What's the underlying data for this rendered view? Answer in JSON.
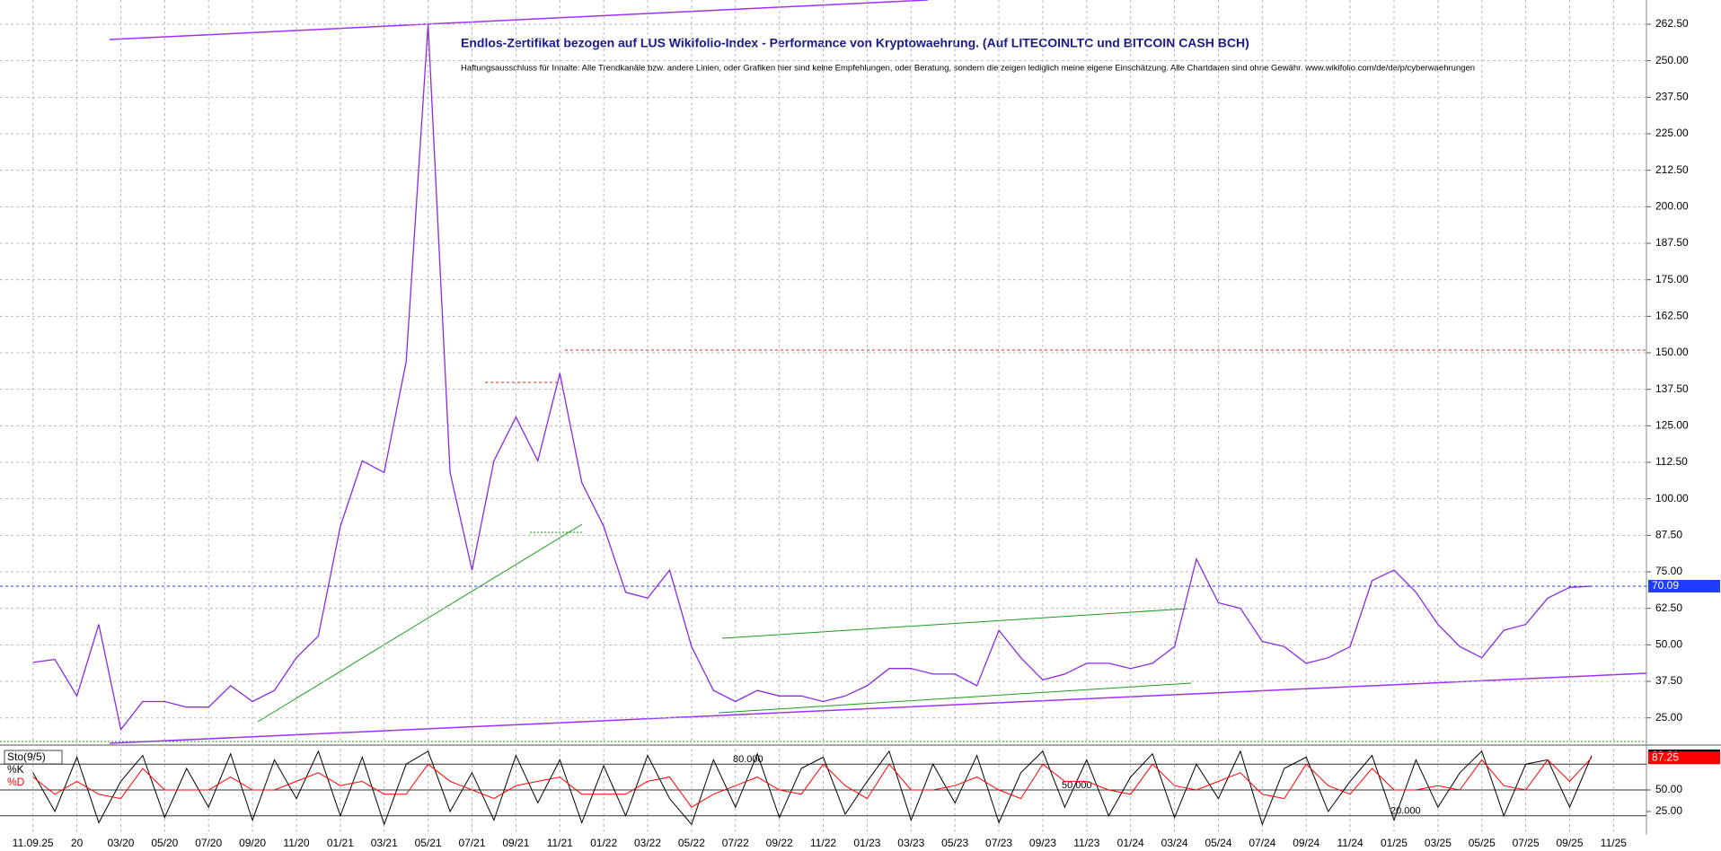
{
  "chart_data": [
    {
      "type": "line",
      "title": "Endlos-Zertifikat bezogen auf LUS Wikifolio-Index - Performance von Kryptowaehrung. (Auf LITECOINLTC und BITCOIN CASH BCH)",
      "subtitle": "Haftungsausschluss für Inhalte: Alle Trendkanäle bzw. andere Linien, oder Grafiken hier sind keine Empfehlungen, oder Beratung, sondern die zeigen lediglich meine eigene Einschätzung. Alle Chartdaten sind ohne Gewähr.  www.wikifolio.com/de/de/p/cyberwaehrungen",
      "categories": [
        "11.09.25",
        null,
        "20",
        null,
        "03/20",
        null,
        "05/20",
        null,
        "07/20",
        null,
        "09/20",
        null,
        "11/20",
        null,
        "01/21",
        null,
        "03/21",
        null,
        "05/21",
        null,
        "07/21",
        null,
        "09/21",
        null,
        "11/21",
        null,
        "01/22",
        null,
        "03/22",
        null,
        "05/22",
        null,
        "07/22",
        null,
        "09/22",
        null,
        "11/22",
        null,
        "01/23",
        null,
        "03/23",
        null,
        "05/23",
        null,
        "07/23",
        null,
        "09/23",
        null,
        "11/23",
        null,
        "01/24",
        null,
        "03/24",
        null,
        "05/24",
        null,
        "07/24",
        null,
        "09/24",
        null,
        "11/24",
        null,
        "01/25",
        null,
        "03/25",
        null,
        "05/25",
        null,
        "07/25",
        null,
        "09/25",
        null,
        "11/25"
      ],
      "series": [
        {
          "color": "#8a2be2",
          "values": [
            44,
            45,
            32.5,
            57,
            21,
            30.6,
            30.6,
            28.7,
            28.7,
            36,
            30.6,
            34.4,
            45.6,
            53,
            90.6,
            113,
            109,
            147,
            262.5,
            109,
            75.6,
            113,
            128,
            113,
            143,
            105.6,
            90.6,
            68,
            66,
            75.6,
            49.4,
            34.4,
            30.6,
            34.4,
            32.5,
            32.5,
            30.6,
            32.5,
            36,
            41.9,
            41.9,
            40,
            40,
            36,
            55,
            45.6,
            38,
            40,
            43.7,
            43.7,
            41.9,
            43.7,
            49.4,
            79.4,
            64.4,
            62.5,
            51.2,
            49.4,
            43.7,
            45.6,
            49.4,
            72,
            75.6,
            68,
            57,
            49.4,
            45.6,
            55,
            57,
            66,
            69.7,
            70.09,
            null
          ]
        }
      ],
      "last_value_color": "#1f3cff",
      "ylim": [
        16.3,
        270.8
      ],
      "yticks": [
        {
          "value": 25,
          "label": "25.00"
        },
        {
          "value": 37.5,
          "label": "37.50"
        },
        {
          "value": 50,
          "label": "50.00"
        },
        {
          "value": 62.5,
          "label": "62.50"
        },
        {
          "value": 75,
          "label": "75.00"
        },
        {
          "value": 87.5,
          "label": "87.50"
        },
        {
          "value": 100,
          "label": "100.00"
        },
        {
          "value": 112.5,
          "label": "112.50"
        },
        {
          "value": 125,
          "label": "125.00"
        },
        {
          "value": 137.5,
          "label": "137.50"
        },
        {
          "value": 150,
          "label": "150.00"
        },
        {
          "value": 162.5,
          "label": "162.50"
        },
        {
          "value": 175,
          "label": "175.00"
        },
        {
          "value": 187.5,
          "label": "187.50"
        },
        {
          "value": 200,
          "label": "200.00"
        },
        {
          "value": 212.5,
          "label": "212.50"
        },
        {
          "value": 225,
          "label": "225.00"
        },
        {
          "value": 237.5,
          "label": "237.50"
        },
        {
          "value": 250,
          "label": "250.00"
        },
        {
          "value": 262.5,
          "label": "262.50"
        }
      ],
      "grid": true
    },
    {
      "type": "line",
      "label": "Sto(9/5)",
      "series": [
        {
          "name": "%K",
          "color": "#000000",
          "values": [
            70,
            25,
            88,
            12,
            60,
            90,
            18,
            75,
            30,
            92,
            15,
            85,
            40,
            95,
            20,
            88,
            10,
            80,
            95,
            25,
            70,
            15,
            90,
            35,
            85,
            12,
            78,
            20,
            90,
            40,
            10,
            85,
            30,
            92,
            18,
            75,
            88,
            22,
            60,
            95,
            15,
            80,
            35,
            90,
            12,
            70,
            95,
            30,
            85,
            20,
            65,
            92,
            18,
            80,
            40,
            95,
            10,
            75,
            88,
            25,
            60,
            90,
            15,
            85,
            30,
            70,
            95,
            20,
            80,
            85,
            30,
            89.61,
            null
          ]
        },
        {
          "name": "%D",
          "color": "#ff0000",
          "values": [
            65,
            45,
            60,
            45,
            40,
            75,
            50,
            50,
            50,
            65,
            50,
            50,
            60,
            70,
            55,
            60,
            45,
            45,
            80,
            60,
            50,
            40,
            55,
            60,
            65,
            45,
            45,
            45,
            60,
            65,
            30,
            45,
            55,
            65,
            50,
            45,
            80,
            55,
            40,
            80,
            50,
            50,
            55,
            65,
            50,
            40,
            80,
            60,
            60,
            50,
            45,
            80,
            55,
            50,
            60,
            70,
            45,
            40,
            80,
            55,
            45,
            75,
            50,
            50,
            55,
            50,
            85,
            55,
            50,
            85,
            60,
            87.25,
            null
          ]
        }
      ],
      "ylim": [
        0,
        100
      ],
      "yticks": [
        {
          "value": 50,
          "label": "50.00"
        },
        {
          "value": 25,
          "label": "25.00"
        }
      ],
      "levels": [
        {
          "value": 80,
          "label": "80.000"
        },
        {
          "value": 50,
          "label": "50.000"
        },
        {
          "value": 20,
          "label": "20.000"
        }
      ]
    }
  ]
}
